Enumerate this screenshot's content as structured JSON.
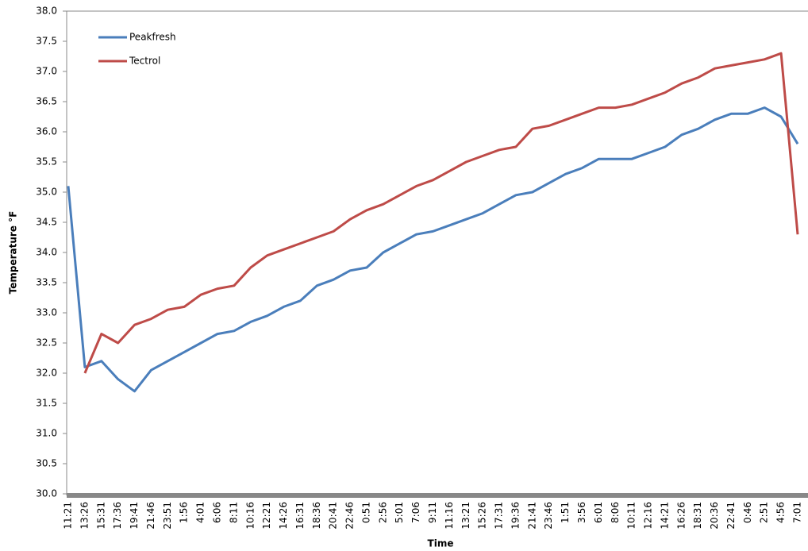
{
  "chart_data": {
    "type": "line",
    "x_label": "Time",
    "y_label": "Temperature °F",
    "categories": [
      "11:21",
      "13:26",
      "15:31",
      "17:36",
      "19:41",
      "21:46",
      "23:51",
      "1:56",
      "4:01",
      "6:06",
      "8:11",
      "10:16",
      "12:21",
      "14:26",
      "16:31",
      "18:36",
      "20:41",
      "22:46",
      "0:51",
      "2:56",
      "5:01",
      "7:06",
      "9:11",
      "11:16",
      "13:21",
      "15:26",
      "17:31",
      "19:36",
      "21:41",
      "23:46",
      "1:51",
      "3:56",
      "6:01",
      "8:06",
      "10:11",
      "12:16",
      "14:21",
      "16:26",
      "18:31",
      "20:36",
      "22:41",
      "0:46",
      "2:51",
      "4:56",
      "7:01"
    ],
    "series": [
      {
        "name": "Peakfresh",
        "color": "#4a7ebb",
        "values": [
          35.1,
          32.1,
          32.2,
          31.9,
          31.7,
          32.05,
          32.2,
          32.35,
          32.5,
          32.65,
          32.7,
          32.85,
          32.95,
          33.1,
          33.2,
          33.45,
          33.55,
          33.7,
          33.75,
          34.0,
          34.15,
          34.3,
          34.35,
          34.45,
          34.55,
          34.65,
          34.8,
          34.95,
          35.0,
          35.15,
          35.3,
          35.4,
          35.55,
          35.55,
          35.55,
          35.65,
          35.75,
          35.95,
          36.05,
          36.2,
          36.3,
          36.3,
          36.4,
          36.25,
          35.8
        ]
      },
      {
        "name": "Tectrol",
        "color": "#be4b48",
        "values": [
          null,
          32.0,
          32.65,
          32.5,
          32.8,
          32.9,
          33.05,
          33.1,
          33.3,
          33.4,
          33.45,
          33.75,
          33.95,
          34.05,
          34.15,
          34.25,
          34.35,
          34.55,
          34.7,
          34.8,
          34.95,
          35.1,
          35.2,
          35.35,
          35.5,
          35.6,
          35.7,
          35.75,
          36.05,
          36.1,
          36.2,
          36.3,
          36.4,
          36.4,
          36.45,
          36.55,
          36.65,
          36.8,
          36.9,
          37.05,
          37.1,
          37.15,
          37.2,
          37.3,
          34.3
        ]
      }
    ],
    "ylim": [
      30,
      38
    ],
    "yticks": [
      {
        "value": 30,
        "label": "30.0"
      },
      30.5,
      {
        "value": 31,
        "label": "31.0"
      },
      31.5,
      {
        "value": 32,
        "label": "32.0"
      },
      32.5,
      {
        "value": 33,
        "label": "33.0"
      },
      33.5,
      {
        "value": 34,
        "label": "34.0"
      },
      34.5,
      {
        "value": 35,
        "label": "35.0"
      },
      35.5,
      {
        "value": 36,
        "label": "36.0"
      },
      36.5,
      {
        "value": 37,
        "label": "37.0"
      },
      37.5,
      {
        "value": 38,
        "label": "38.0"
      }
    ],
    "legend": "top-left",
    "grid": false
  }
}
